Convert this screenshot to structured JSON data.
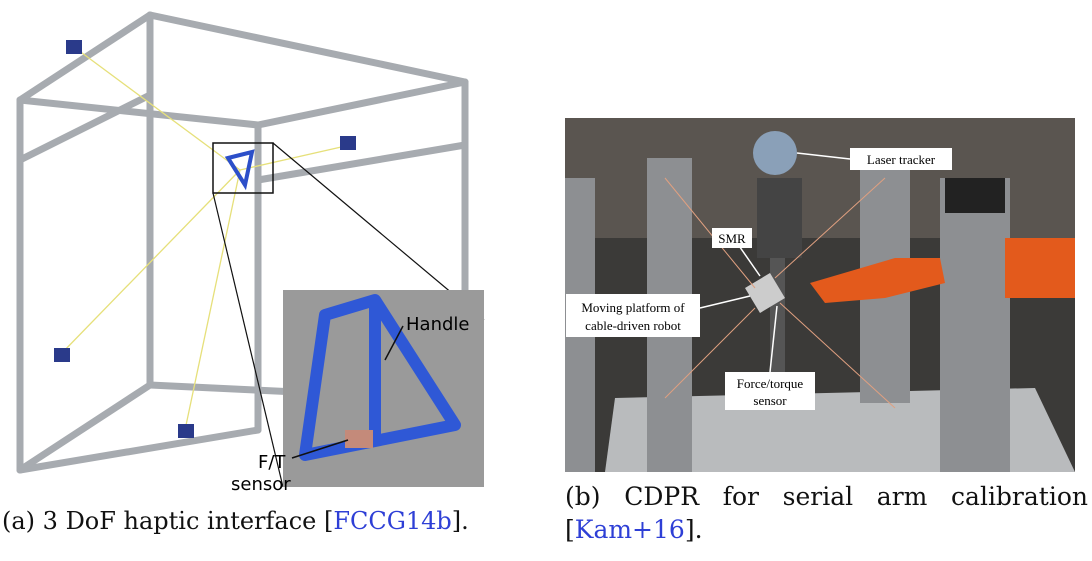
{
  "figures": [
    {
      "annotations": {
        "handle": "Handle",
        "ft_line1": "F/T",
        "ft_line2": "sensor"
      },
      "caption": [
        "(a) 3 DoF haptic interface [",
        "FCCG14b",
        "]."
      ]
    },
    {
      "annotations": {
        "laser": "Laser tracker",
        "smr": "SMR",
        "platform_line1": "Moving platform of",
        "platform_line2": "cable-driven robot",
        "force_line1": "Force/torque",
        "force_line2": "sensor"
      },
      "caption": [
        "(b) CDPR for serial arm calibration [",
        "Kam+16",
        "]."
      ]
    }
  ]
}
